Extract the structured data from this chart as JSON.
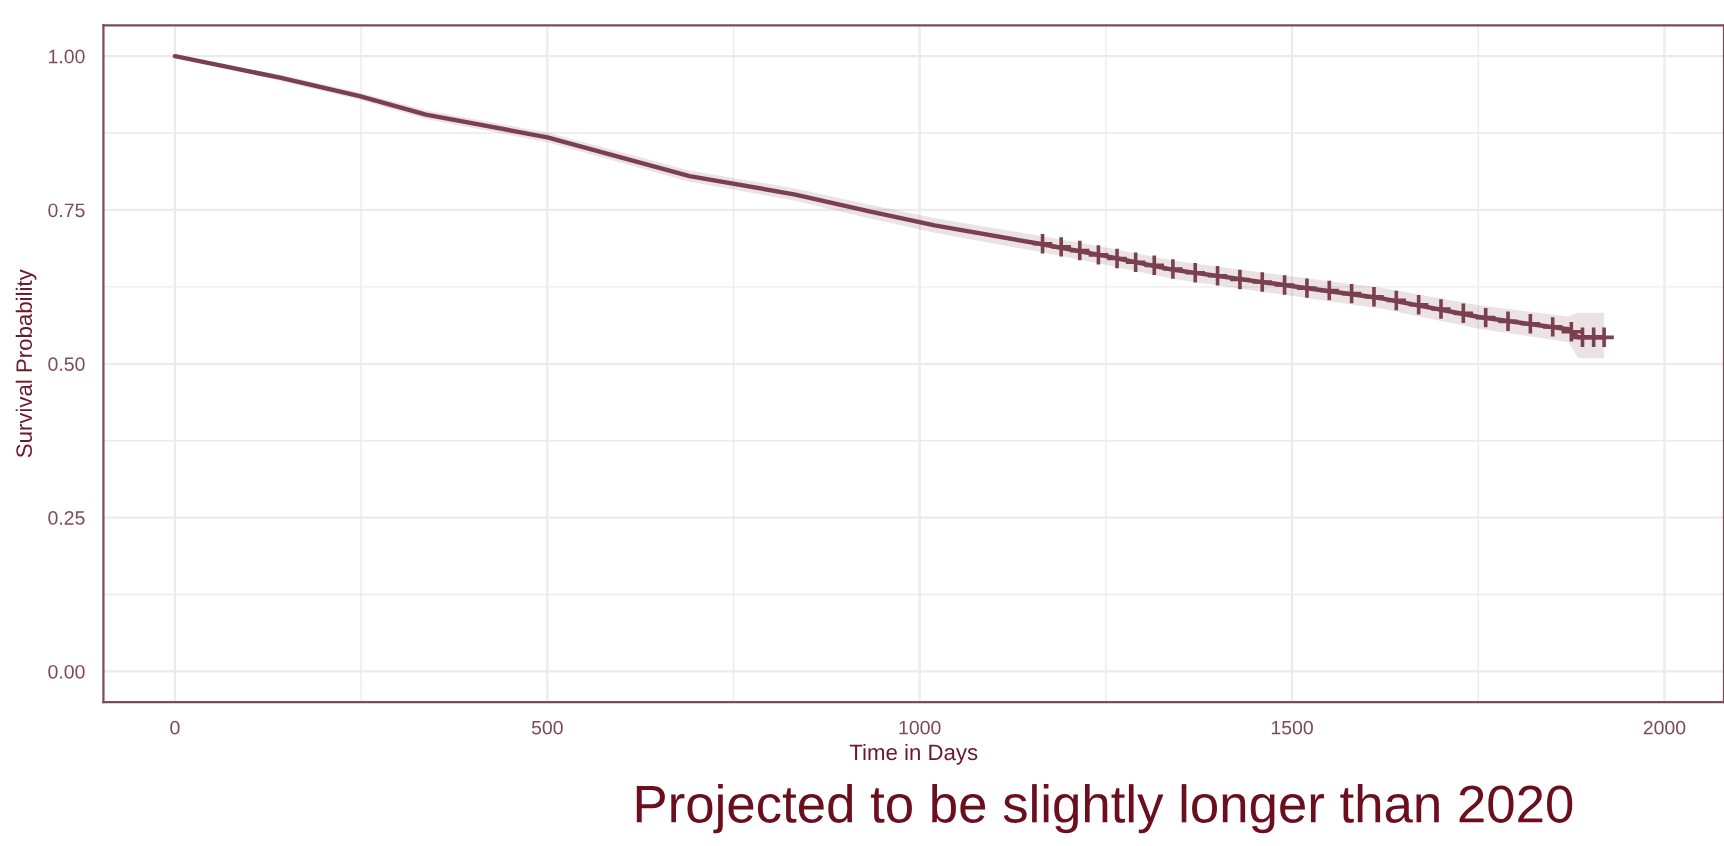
{
  "chart_data": {
    "type": "line",
    "xlabel": "Time in Days",
    "ylabel": "Survival Probability",
    "annotations": [
      "Projected to be slightly longer than 2020"
    ],
    "series": [
      {
        "color": "#7b3f52",
        "x": [
          0,
          141,
          248,
          337,
          500,
          691,
          833,
          931,
          1020,
          1161,
          1250,
          1339,
          1501,
          1622,
          1751,
          1871,
          1884,
          1919
        ],
        "values": [
          1.0,
          0.965,
          0.935,
          0.905,
          0.868,
          0.805,
          0.775,
          0.748,
          0.725,
          0.695,
          0.675,
          0.653,
          0.626,
          0.606,
          0.576,
          0.556,
          0.543,
          0.543
        ],
        "lower": [
          1.0,
          0.96,
          0.929,
          0.898,
          0.86,
          0.796,
          0.765,
          0.737,
          0.713,
          0.682,
          0.661,
          0.638,
          0.61,
          0.589,
          0.557,
          0.535,
          0.509,
          0.509
        ],
        "upper": [
          1.0,
          0.97,
          0.941,
          0.912,
          0.876,
          0.814,
          0.785,
          0.759,
          0.737,
          0.708,
          0.689,
          0.668,
          0.642,
          0.623,
          0.595,
          0.577,
          0.583,
          0.583
        ]
      },
      {
        "type": "scatter",
        "color": "#7b3f52",
        "marker": "cross",
        "x": [
          1165,
          1190,
          1215,
          1240,
          1265,
          1290,
          1315,
          1340,
          1370,
          1400,
          1430,
          1460,
          1490,
          1520,
          1550,
          1580,
          1610,
          1640,
          1670,
          1700,
          1730,
          1760,
          1790,
          1820,
          1850,
          1875,
          1890,
          1905,
          1919
        ],
        "values": [
          0.695,
          0.69,
          0.684,
          0.677,
          0.671,
          0.665,
          0.66,
          0.654,
          0.648,
          0.643,
          0.637,
          0.633,
          0.628,
          0.623,
          0.619,
          0.614,
          0.609,
          0.603,
          0.596,
          0.589,
          0.582,
          0.575,
          0.569,
          0.565,
          0.56,
          0.552,
          0.543,
          0.543,
          0.543
        ]
      }
    ],
    "xlim": [
      -96,
      2080
    ],
    "xticks": [
      0,
      500,
      1000,
      1500,
      2000
    ],
    "ylim": [
      -0.05,
      1.05
    ],
    "yticks": [
      {
        "value": 0,
        "label": "0.00"
      },
      {
        "value": 0.25,
        "label": "0.25"
      },
      {
        "value": 0.5,
        "label": "0.50"
      },
      {
        "value": 0.75,
        "label": "0.75"
      },
      {
        "value": 1,
        "label": "1.00"
      }
    ],
    "grid": true
  }
}
